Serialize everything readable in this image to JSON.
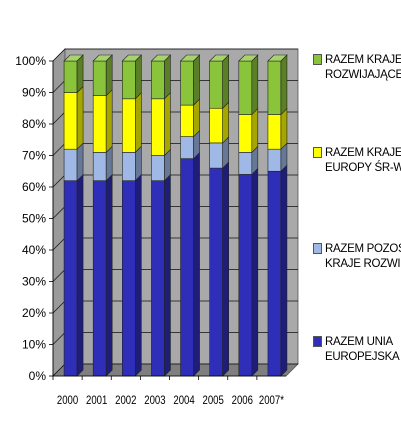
{
  "chart_data": {
    "type": "bar",
    "stacked": true,
    "percent": true,
    "three_d": true,
    "categories": [
      "2000",
      "2001",
      "2002",
      "2003",
      "2004",
      "2005",
      "2006",
      "2007*"
    ],
    "yticks": [
      "0%",
      "10%",
      "20%",
      "30%",
      "40%",
      "50%",
      "60%",
      "70%",
      "80%",
      "90%",
      "100%"
    ],
    "ylim": [
      0,
      100
    ],
    "series": [
      {
        "name": "RAZEM UNIA EUROPEJSKA",
        "color": "#2e2eb8",
        "values": [
          62,
          62,
          62,
          62,
          69,
          66,
          64,
          65
        ]
      },
      {
        "name": "RAZEM POZOSTAŁE KRAJE ROZWINIĘTE",
        "color": "#9fb8e6",
        "values": [
          10,
          9,
          9,
          8,
          7,
          8,
          7,
          7
        ]
      },
      {
        "name": "RAZEM KRAJE EUROPY ŚR-WSCH.",
        "color": "#ffff00",
        "values": [
          18,
          18,
          17,
          18,
          10,
          11,
          12,
          11
        ]
      },
      {
        "name": "RAZEM KRAJE ROZWIJAJĄCE SIĘ",
        "color": "#8ac43a",
        "values": [
          10,
          11,
          12,
          12,
          14,
          15,
          17,
          17
        ]
      }
    ],
    "legend": [
      {
        "line1": "RAZEM KRAJE",
        "line2": "ROZWIJAJĄCE SIĘ",
        "color": "#8ac43a"
      },
      {
        "line1": "RAZEM KRAJE",
        "line2": "EUROPY ŚR-WSCH.",
        "color": "#ffff00"
      },
      {
        "line1": "RAZEM POZOSTAŁE",
        "line2": "KRAJE ROZWINIĘTE",
        "color": "#9fb8e6"
      },
      {
        "line1": "RAZEM UNIA",
        "line2": "EUROPEJSKA",
        "color": "#2e2eb8"
      }
    ],
    "legend_position": "right",
    "grid": true
  }
}
